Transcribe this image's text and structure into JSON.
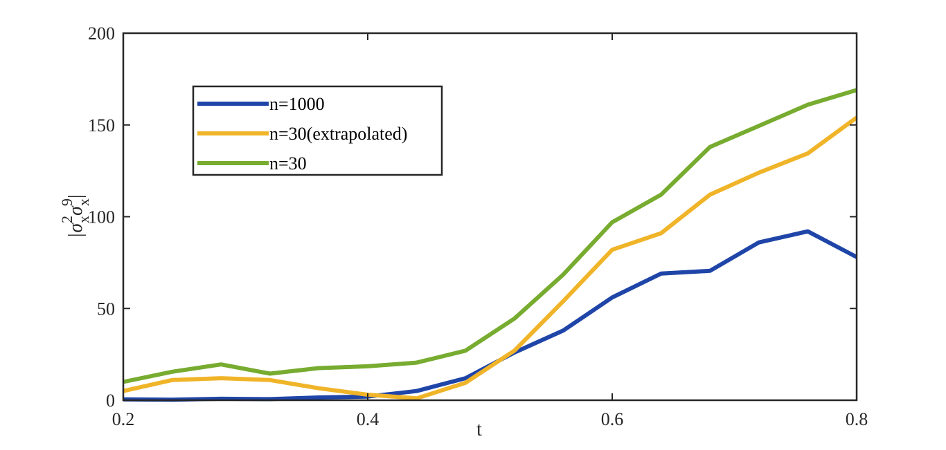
{
  "chart_data": {
    "type": "line",
    "xlabel": "t",
    "ylabel": "|σ",
    "ylabel_parts": {
      "sub1": "x",
      "sup1": "2",
      "sym2": "σ",
      "sub2": "x",
      "sup2": "9",
      "close": "|"
    },
    "xlim": [
      0.2,
      0.8
    ],
    "ylim": [
      0,
      200
    ],
    "xticks": [
      0.2,
      0.4,
      0.6,
      0.8
    ],
    "xtick_labels": [
      "0.2",
      "0.4",
      "0.6",
      "0.8"
    ],
    "yticks": [
      0,
      50,
      100,
      150,
      200
    ],
    "ytick_labels": [
      "0",
      "50",
      "100",
      "150",
      "200"
    ],
    "grid": false,
    "legend_position": "top-left",
    "x": [
      0.2,
      0.24,
      0.28,
      0.32,
      0.36,
      0.4,
      0.44,
      0.48,
      0.52,
      0.56,
      0.6,
      0.64,
      0.68,
      0.72,
      0.76,
      0.8
    ],
    "series": [
      {
        "name": "n=1000",
        "color": "#1f45a8",
        "values": [
          0.5,
          0.3,
          0.8,
          0.6,
          1.5,
          2,
          5,
          12,
          26,
          38,
          56,
          69,
          70.5,
          86,
          92,
          78
        ]
      },
      {
        "name": "n=30(extrapolated)",
        "color": "#f0b429",
        "values": [
          5,
          11,
          12,
          11,
          6.5,
          3,
          1,
          9.5,
          27,
          54,
          82,
          91,
          112,
          124,
          134.5,
          154
        ]
      },
      {
        "name": "n=30",
        "color": "#77ac30",
        "values": [
          10,
          15.5,
          19.5,
          14.5,
          17.5,
          18.5,
          20.5,
          27,
          44.5,
          68.5,
          97,
          112,
          138,
          149.5,
          161,
          169
        ]
      }
    ]
  }
}
